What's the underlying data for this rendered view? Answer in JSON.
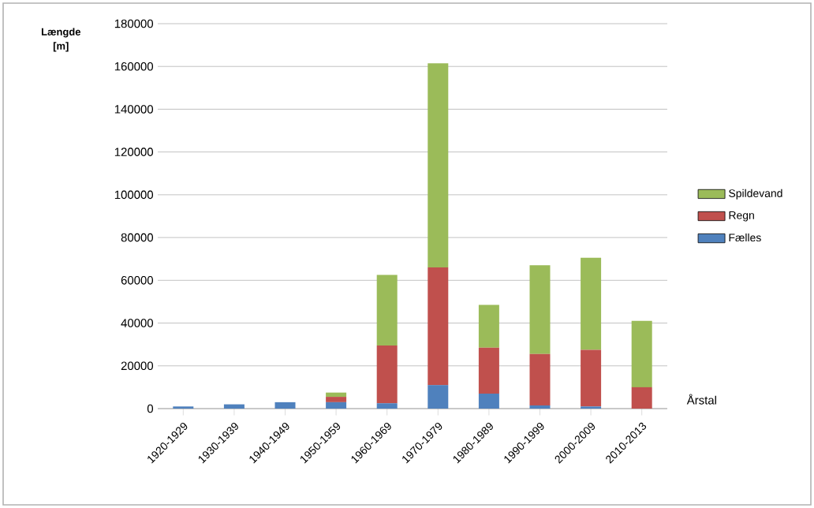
{
  "chart_data": {
    "type": "bar",
    "stacked": true,
    "ylabel": "Længde [m]",
    "xlabel": "Årstal",
    "categories": [
      "1920-1929",
      "1930-1939",
      "1940-1949",
      "1950-1959",
      "1960-1969",
      "1970-1979",
      "1980-1989",
      "1990-1999",
      "2000-2009",
      "2010-2013"
    ],
    "series": [
      {
        "name": "Fælles",
        "color": "#4f81bd",
        "values": [
          1000,
          2000,
          3000,
          3000,
          2500,
          11000,
          7000,
          1500,
          1000,
          0
        ]
      },
      {
        "name": "Regn",
        "color": "#c0504d",
        "values": [
          0,
          0,
          0,
          2500,
          27000,
          55000,
          21500,
          24000,
          26500,
          10000
        ]
      },
      {
        "name": "Spildevand",
        "color": "#9bbb59",
        "values": [
          0,
          0,
          0,
          2000,
          33000,
          95500,
          20000,
          41500,
          43000,
          31000
        ]
      }
    ],
    "ylim": [
      0,
      180000
    ],
    "yticks": [
      0,
      20000,
      40000,
      60000,
      80000,
      100000,
      120000,
      140000,
      160000,
      180000
    ],
    "grid": "y",
    "legend": "right"
  }
}
